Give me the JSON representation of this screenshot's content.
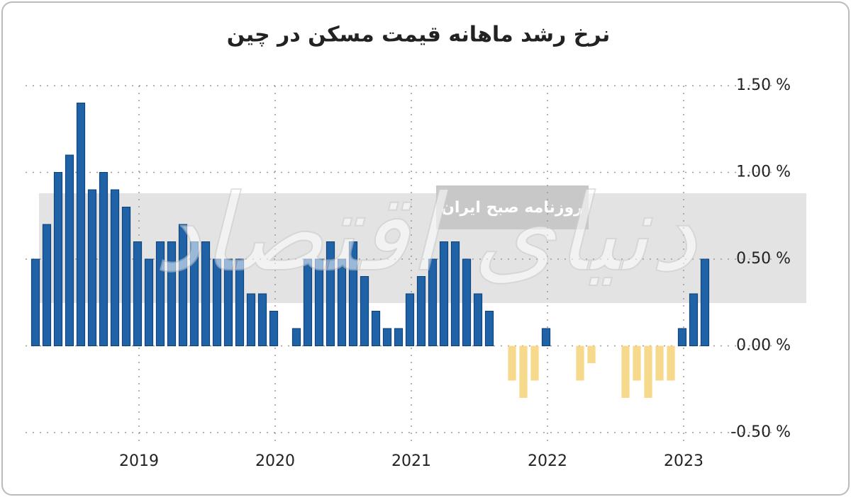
{
  "chart_data": {
    "type": "bar",
    "title": "نرخ رشد ماهانه قیمت مسکن در چین",
    "watermark": "روزنامه صبح ایران",
    "logo": "دنیای اقتصاد",
    "categories": [
      null,
      null,
      null,
      null,
      null,
      null,
      null,
      null,
      null,
      "2019",
      null,
      null,
      null,
      null,
      null,
      null,
      null,
      null,
      null,
      null,
      null,
      "2020",
      null,
      null,
      null,
      null,
      null,
      null,
      null,
      null,
      null,
      null,
      null,
      "2021",
      null,
      null,
      null,
      null,
      null,
      null,
      null,
      null,
      null,
      null,
      null,
      "2022",
      null,
      null,
      null,
      null,
      null,
      null,
      null,
      null,
      null,
      null,
      null,
      "2023",
      null,
      null
    ],
    "values": [
      0.5,
      0.7,
      1.0,
      1.1,
      1.4,
      0.9,
      1.0,
      0.9,
      0.8,
      0.6,
      0.5,
      0.6,
      0.6,
      0.7,
      0.6,
      0.6,
      0.5,
      0.5,
      0.5,
      0.3,
      0.3,
      0.2,
      0,
      0.1,
      0.5,
      0.5,
      0.6,
      0.5,
      0.6,
      0.4,
      0.2,
      0.1,
      0.1,
      0.3,
      0.4,
      0.5,
      0.6,
      0.6,
      0.5,
      0.3,
      0.2,
      0,
      -0.2,
      -0.3,
      -0.2,
      0.1,
      0,
      0,
      -0.2,
      -0.1,
      0,
      0,
      -0.3,
      -0.2,
      -0.3,
      -0.2,
      -0.2,
      0.1,
      0.3,
      0.5
    ],
    "color": "#1f62a6",
    "negative_color": "#f7d98c",
    "ylim": [
      -0.5,
      1.5
    ],
    "yticks": [
      {
        "value": -0.5,
        "label": "-0.50 %"
      },
      {
        "value": 0,
        "label": "0.00 %"
      },
      {
        "value": 0.5,
        "label": "0.50 %"
      },
      {
        "value": 1.0,
        "label": "1.00 %"
      },
      {
        "value": 1.5,
        "label": "1.50 %"
      }
    ],
    "grid": true
  }
}
